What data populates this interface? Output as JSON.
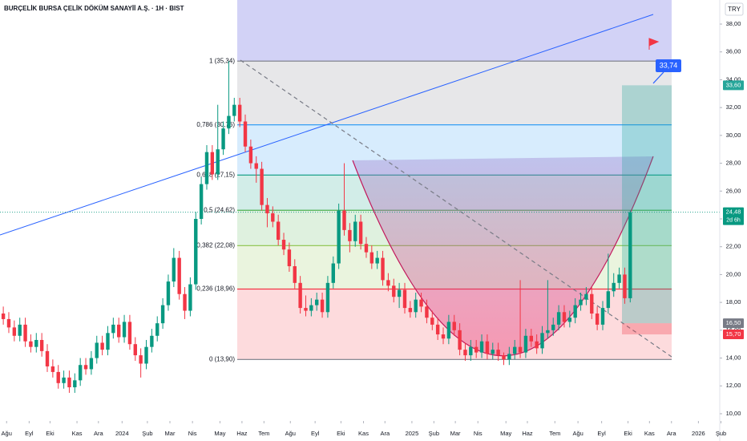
{
  "chart_data": {
    "type": "candlestick",
    "title": "BURÇELİK BURSA ÇELİK DÖKÜM SANAYİİ A.Ş. · 1H · BIST",
    "currency": "TRY",
    "up_color": "#089981",
    "down_color": "#f23645",
    "open": [
      17.2,
      16.8,
      16.2,
      15.6,
      16.4,
      15.2,
      14.8,
      15.3,
      14.5,
      13.4,
      13.0,
      12.2,
      12.6,
      11.9,
      12.4,
      13.5,
      13.2,
      14.0,
      15.1,
      14.6,
      15.8,
      16.4,
      15.5,
      16.6,
      15.0,
      14.2,
      13.6,
      14.8,
      15.6,
      16.5,
      17.8,
      19.5,
      21.2,
      18.6,
      17.4,
      19.3,
      24.0,
      26.5,
      28.8,
      27.2,
      29.0,
      30.5,
      31.4,
      32.2,
      31.0,
      29.2,
      28.0,
      27.6,
      25.0,
      24.4,
      23.8,
      22.5,
      21.8,
      20.6,
      19.4,
      17.6,
      17.4,
      17.8,
      18.2,
      17.3,
      19.4,
      20.8,
      24.6,
      23.2,
      22.4,
      23.8,
      22.2,
      21.6,
      20.8,
      21.2,
      19.6,
      19.2,
      18.4,
      18.9,
      17.6,
      17.3,
      18.2,
      17.7,
      16.9,
      16.4,
      15.7,
      15.4,
      16.6,
      16.0,
      14.6,
      14.2,
      14.8,
      14.4,
      15.2,
      14.3,
      14.6,
      14.2,
      13.9,
      14.3,
      14.8,
      14.4,
      15.6,
      15.2,
      14.7,
      15.8,
      16.0,
      16.4,
      17.3,
      16.6,
      16.9,
      17.8,
      18.2,
      18.6,
      17.2,
      16.4,
      17.6,
      18.8,
      19.4,
      20.0,
      18.3
    ],
    "high": [
      17.7,
      17.3,
      16.7,
      16.9,
      16.9,
      15.7,
      15.8,
      15.8,
      15.0,
      13.9,
      13.5,
      13.1,
      13.1,
      12.9,
      14.0,
      14.0,
      14.5,
      15.6,
      15.6,
      16.3,
      16.9,
      16.9,
      17.1,
      17.1,
      15.5,
      14.7,
      15.3,
      16.1,
      17.0,
      18.3,
      20.0,
      21.9,
      21.7,
      19.1,
      19.8,
      24.5,
      27.0,
      29.3,
      29.3,
      32.2,
      31.0,
      35.34,
      32.7,
      32.7,
      31.5,
      29.7,
      28.5,
      28.1,
      25.5,
      24.9,
      24.3,
      23.0,
      22.3,
      21.1,
      19.9,
      18.5,
      18.3,
      18.7,
      18.7,
      19.9,
      21.3,
      25.1,
      28.0,
      23.7,
      24.3,
      24.3,
      22.7,
      22.1,
      21.7,
      21.7,
      20.1,
      19.7,
      19.4,
      19.4,
      18.1,
      18.7,
      18.7,
      18.2,
      17.4,
      16.9,
      16.2,
      17.1,
      17.1,
      16.5,
      15.1,
      15.3,
      15.3,
      15.7,
      15.7,
      15.1,
      15.1,
      14.4,
      14.8,
      15.3,
      19.6,
      16.1,
      16.1,
      15.7,
      16.3,
      19.6,
      16.9,
      17.8,
      17.8,
      17.4,
      18.3,
      18.7,
      19.1,
      19.1,
      17.7,
      18.1,
      21.5,
      20.1,
      20.5,
      20.5,
      24.6
    ],
    "low": [
      16.4,
      15.8,
      15.2,
      15.2,
      14.8,
      14.4,
      14.4,
      14.1,
      13.0,
      12.6,
      11.8,
      11.8,
      11.5,
      11.5,
      12.0,
      12.8,
      12.8,
      13.6,
      14.2,
      14.2,
      15.4,
      15.1,
      15.1,
      14.6,
      13.8,
      12.6,
      13.2,
      14.4,
      15.2,
      16.1,
      17.4,
      19.1,
      18.2,
      16.8,
      17.0,
      18.9,
      23.6,
      26.1,
      26.8,
      26.8,
      28.6,
      30.1,
      31.0,
      30.6,
      28.8,
      27.6,
      26.6,
      24.6,
      23.4,
      23.4,
      22.1,
      21.4,
      20.2,
      19.0,
      17.2,
      17.0,
      17.0,
      17.4,
      16.9,
      16.9,
      19.0,
      20.4,
      22.8,
      21.6,
      22.0,
      21.8,
      21.2,
      20.4,
      20.4,
      19.2,
      18.8,
      18.0,
      17.6,
      17.2,
      16.9,
      16.9,
      17.3,
      16.5,
      16.0,
      15.3,
      15.0,
      15.0,
      15.6,
      14.2,
      13.8,
      13.8,
      14.0,
      14.0,
      13.9,
      13.9,
      13.8,
      13.5,
      13.5,
      13.9,
      14.0,
      14.0,
      14.8,
      14.3,
      14.3,
      15.4,
      15.6,
      16.0,
      16.2,
      16.2,
      16.5,
      17.4,
      17.8,
      16.8,
      16.0,
      16.0,
      17.2,
      18.4,
      19.0,
      17.9,
      18.0
    ],
    "close": [
      16.8,
      16.2,
      15.6,
      16.4,
      15.2,
      14.8,
      15.3,
      14.5,
      13.4,
      13.0,
      12.2,
      12.6,
      11.9,
      12.4,
      13.5,
      13.2,
      14.0,
      15.1,
      14.6,
      15.8,
      16.4,
      15.5,
      16.6,
      15.0,
      14.2,
      13.6,
      14.8,
      15.6,
      16.5,
      17.8,
      19.5,
      21.2,
      18.6,
      17.4,
      19.3,
      24.0,
      26.5,
      28.8,
      27.2,
      29.0,
      30.5,
      31.4,
      32.2,
      31.0,
      29.2,
      28.0,
      27.6,
      25.0,
      24.4,
      23.8,
      22.5,
      21.8,
      20.6,
      19.4,
      17.6,
      17.4,
      17.8,
      18.2,
      17.3,
      19.4,
      20.8,
      24.6,
      23.2,
      22.4,
      23.8,
      22.2,
      21.6,
      20.8,
      21.2,
      19.6,
      19.2,
      18.4,
      18.9,
      17.6,
      17.3,
      18.2,
      17.7,
      16.9,
      16.4,
      15.7,
      15.4,
      16.6,
      16.0,
      14.6,
      14.2,
      14.8,
      14.4,
      15.2,
      14.3,
      14.6,
      14.2,
      13.9,
      14.3,
      14.8,
      14.4,
      15.6,
      15.2,
      14.7,
      15.8,
      16.0,
      16.4,
      17.3,
      16.6,
      16.9,
      17.8,
      18.2,
      18.6,
      17.2,
      16.4,
      17.6,
      18.8,
      19.4,
      20.0,
      18.3,
      24.48
    ],
    "xlim": [
      -0.6,
      131.3
    ],
    "xticks": [
      {
        "value": 0.6,
        "label": "Ağu"
      },
      {
        "value": 4.7,
        "label": "Eyl"
      },
      {
        "value": 8.5,
        "label": "Eki"
      },
      {
        "value": 13.4,
        "label": "Kas"
      },
      {
        "value": 17.3,
        "label": "Ara"
      },
      {
        "value": 21.6,
        "label": "2024"
      },
      {
        "value": 26.2,
        "label": "Şub"
      },
      {
        "value": 30.3,
        "label": "Mar"
      },
      {
        "value": 34.4,
        "label": "Nis"
      },
      {
        "value": 39.4,
        "label": "May"
      },
      {
        "value": 43.4,
        "label": "Haz"
      },
      {
        "value": 47.4,
        "label": "Tem"
      },
      {
        "value": 52.2,
        "label": "Ağu"
      },
      {
        "value": 56.7,
        "label": "Eyl"
      },
      {
        "value": 61.4,
        "label": "Eki"
      },
      {
        "value": 65.5,
        "label": "Kas"
      },
      {
        "value": 69.4,
        "label": "Ara"
      },
      {
        "value": 74.3,
        "label": "2025"
      },
      {
        "value": 78.3,
        "label": "Şub"
      },
      {
        "value": 82.2,
        "label": "Mar"
      },
      {
        "value": 86.3,
        "label": "Nis"
      },
      {
        "value": 91.4,
        "label": "May"
      },
      {
        "value": 95.3,
        "label": "Haz"
      },
      {
        "value": 100.3,
        "label": "Tem"
      },
      {
        "value": 104.5,
        "label": "Ağu"
      },
      {
        "value": 108.8,
        "label": "Eyl"
      },
      {
        "value": 113.6,
        "label": "Eki"
      },
      {
        "value": 117.5,
        "label": "Kas"
      },
      {
        "value": 121.5,
        "label": "Ara"
      },
      {
        "value": 126.4,
        "label": "2026"
      },
      {
        "value": 130.5,
        "label": "Şub"
      }
    ],
    "ylim": [
      9.48,
      39.73
    ],
    "yticks": [
      {
        "value": 10,
        "label": "10,00"
      },
      {
        "value": 12,
        "label": "12,00"
      },
      {
        "value": 14,
        "label": "14,00"
      },
      {
        "value": 16,
        "label": "16,00"
      },
      {
        "value": 18,
        "label": "18,00"
      },
      {
        "value": 20,
        "label": "20,00"
      },
      {
        "value": 22,
        "label": "22,00"
      },
      {
        "value": 24,
        "label": "24,00"
      },
      {
        "value": 26,
        "label": "26,00"
      },
      {
        "value": 28,
        "label": "28,00"
      },
      {
        "value": 30,
        "label": "30,00"
      },
      {
        "value": 32,
        "label": "32,00"
      },
      {
        "value": 34,
        "label": "34,00"
      },
      {
        "value": 36,
        "label": "36,00"
      },
      {
        "value": 38,
        "label": "38,00"
      }
    ],
    "fib_levels": [
      {
        "value": 35.34,
        "label": "1 (35,34)",
        "color": "#787b86"
      },
      {
        "value": 30.76,
        "label": "0,786 (30,76)",
        "color": "#2196f3"
      },
      {
        "value": 27.15,
        "label": "0,618 (27,15)",
        "color": "#089981"
      },
      {
        "value": 24.62,
        "label": "0,5 (24,62)",
        "color": "#4caf50"
      },
      {
        "value": 22.08,
        "label": "0,382 (22,08)",
        "color": "#8bc34a"
      },
      {
        "value": 18.96,
        "label": "0,236 (18,96)",
        "color": "#f23645"
      },
      {
        "value": 13.9,
        "label": "0 (13,90)",
        "color": "#787b86"
      }
    ],
    "position": {
      "target": 33.6,
      "entry": 16.5,
      "stop": 15.7
    },
    "price_labels": [
      {
        "value": 33.6,
        "label": "33,60",
        "color": "#26a69a"
      },
      {
        "value": 16.5,
        "label": "16,50",
        "color": "#787b86"
      },
      {
        "value": 15.7,
        "label": "15,70",
        "color": "#f23645"
      }
    ],
    "last_price": {
      "value": 24.48,
      "label": "24,48",
      "countdown": "2d 6h",
      "color": "#089981"
    },
    "callout": {
      "value": 33.74,
      "label": "33,74",
      "color": "#2962ff"
    }
  }
}
